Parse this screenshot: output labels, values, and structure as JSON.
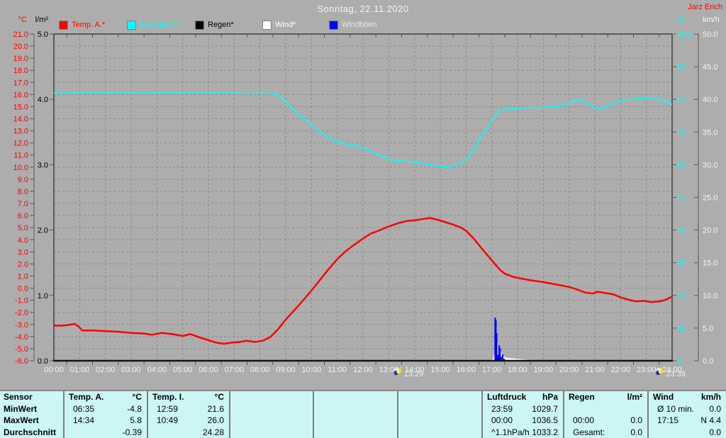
{
  "title": "Sonntag, 22.11.2020",
  "watermark": {
    "text": "Jarz Erich",
    "color": "#ff0000"
  },
  "colors": {
    "background": "#adadad",
    "grid": "#8c8c8c",
    "plot_border": "#5a5a5a",
    "x_axis": "#141414",
    "table_background": "#ccf6f6",
    "table_border": "#7f7f7f",
    "light_text": "#f2f2f2"
  },
  "legend": [
    {
      "label": "Temp. A.*",
      "swatch": "#ff0000",
      "text_color": "#ff0000"
    },
    {
      "label": "Feuchte A.*",
      "swatch": "#00ffff",
      "text_color": "#00ffff"
    },
    {
      "label": "Regen*",
      "swatch": "#000000",
      "text_color": "#000000"
    },
    {
      "label": "Wind*",
      "swatch": "#ffffff",
      "text_color": "#ffffff"
    },
    {
      "label": "Windböen",
      "swatch": "#0000ff",
      "text_color": "#e6e6e6"
    }
  ],
  "chart_data": {
    "type": "line",
    "title": "Sonntag, 22.11.2020",
    "x_axis": {
      "range_hours": [
        0,
        24
      ],
      "labels": [
        "00:00",
        "01:00",
        "02:00",
        "03:00",
        "04:00",
        "05:00",
        "06:00",
        "07:00",
        "08:00",
        "09:00",
        "10:00",
        "11:00",
        "12:00",
        "13:00",
        "14:00",
        "15:00",
        "16:00",
        "17:00",
        "18:00",
        "19:00",
        "20:00",
        "21:00",
        "22:00",
        "23:00",
        "24:00"
      ]
    },
    "axes": {
      "temp": {
        "unit": "°C",
        "color": "#ff0000",
        "min": -6,
        "max": 21,
        "step": 1,
        "tick_labels": [
          "21.0",
          "20.0",
          "19.0",
          "18.0",
          "17.0",
          "16.0",
          "15.0",
          "14.0",
          "13.0",
          "12.0",
          "11.0",
          "10.0",
          "9.0",
          "8.0",
          "7.0",
          "6.0",
          "5.0",
          "4.0",
          "3.0",
          "2.0",
          "1.0",
          "0.0",
          "-1.0",
          "-2.0",
          "-3.0",
          "-4.0",
          "-5.0",
          "-6.0"
        ]
      },
      "rain": {
        "unit": "l/m²",
        "color": "#000000",
        "min": 0,
        "max": 5,
        "step": 1,
        "tick_labels": [
          "5.0",
          "4.0",
          "3.0",
          "2.0",
          "1.0",
          "0.0"
        ]
      },
      "humidity": {
        "unit": "%",
        "color": "#00ffff",
        "min": 0,
        "max": 100,
        "step": 10,
        "tick_labels": [
          "100",
          "90",
          "80",
          "70",
          "60",
          "50",
          "40",
          "30",
          "20",
          "10",
          "0"
        ]
      },
      "wind": {
        "unit": "km/h",
        "color": "#f2f2f2",
        "min": 0,
        "max": 50,
        "step": 5,
        "tick_labels": [
          "50.0",
          "45.0",
          "40.0",
          "35.0",
          "30.0",
          "25.0",
          "20.0",
          "15.0",
          "10.0",
          "5.0",
          "0.0"
        ]
      }
    },
    "series": [
      {
        "name": "Temp. A.",
        "axis": "temp",
        "color": "#ff0000",
        "style": "line",
        "points": [
          [
            0,
            -3.1
          ],
          [
            0.3,
            -3.1
          ],
          [
            0.55,
            -3.05
          ],
          [
            0.8,
            -2.95
          ],
          [
            0.95,
            -3.15
          ],
          [
            1.1,
            -3.5
          ],
          [
            1.5,
            -3.5
          ],
          [
            2,
            -3.55
          ],
          [
            2.5,
            -3.6
          ],
          [
            3,
            -3.7
          ],
          [
            3.5,
            -3.75
          ],
          [
            3.8,
            -3.85
          ],
          [
            4.2,
            -3.7
          ],
          [
            4.6,
            -3.8
          ],
          [
            5,
            -3.95
          ],
          [
            5.3,
            -3.8
          ],
          [
            5.7,
            -4.1
          ],
          [
            6,
            -4.3
          ],
          [
            6.3,
            -4.5
          ],
          [
            6.6,
            -4.6
          ],
          [
            6.9,
            -4.5
          ],
          [
            7.2,
            -4.45
          ],
          [
            7.5,
            -4.35
          ],
          [
            7.8,
            -4.45
          ],
          [
            8.1,
            -4.35
          ],
          [
            8.4,
            -4.05
          ],
          [
            8.7,
            -3.4
          ],
          [
            9,
            -2.6
          ],
          [
            9.3,
            -1.9
          ],
          [
            9.6,
            -1.2
          ],
          [
            10,
            -0.2
          ],
          [
            10.3,
            0.6
          ],
          [
            10.6,
            1.4
          ],
          [
            11,
            2.4
          ],
          [
            11.3,
            3
          ],
          [
            11.6,
            3.5
          ],
          [
            12,
            4.1
          ],
          [
            12.3,
            4.5
          ],
          [
            12.6,
            4.75
          ],
          [
            13,
            5.1
          ],
          [
            13.4,
            5.4
          ],
          [
            13.7,
            5.55
          ],
          [
            14,
            5.6
          ],
          [
            14.3,
            5.7
          ],
          [
            14.6,
            5.8
          ],
          [
            14.9,
            5.65
          ],
          [
            15.2,
            5.45
          ],
          [
            15.5,
            5.25
          ],
          [
            15.8,
            5
          ],
          [
            16,
            4.75
          ],
          [
            16.3,
            4.1
          ],
          [
            16.6,
            3.3
          ],
          [
            17,
            2.3
          ],
          [
            17.3,
            1.55
          ],
          [
            17.5,
            1.2
          ],
          [
            17.8,
            0.95
          ],
          [
            18,
            0.85
          ],
          [
            18.5,
            0.65
          ],
          [
            19,
            0.5
          ],
          [
            19.5,
            0.3
          ],
          [
            20,
            0.1
          ],
          [
            20.3,
            -0.1
          ],
          [
            20.6,
            -0.35
          ],
          [
            20.9,
            -0.45
          ],
          [
            21.1,
            -0.3
          ],
          [
            21.4,
            -0.4
          ],
          [
            21.7,
            -0.5
          ],
          [
            22,
            -0.75
          ],
          [
            22.3,
            -0.95
          ],
          [
            22.6,
            -1.1
          ],
          [
            22.9,
            -1.05
          ],
          [
            23.2,
            -1.15
          ],
          [
            23.5,
            -1.1
          ],
          [
            23.7,
            -1
          ],
          [
            23.85,
            -0.85
          ],
          [
            24,
            -0.7
          ]
        ]
      },
      {
        "name": "Feuchte A.",
        "axis": "humidity",
        "color": "#00ffff",
        "style": "line",
        "points": [
          [
            0,
            81.9
          ],
          [
            1,
            81.9
          ],
          [
            2,
            81.9
          ],
          [
            3,
            81.9
          ],
          [
            4,
            81.9
          ],
          [
            5,
            81.9
          ],
          [
            6,
            81.9
          ],
          [
            7,
            81.9
          ],
          [
            7.8,
            81.8
          ],
          [
            8.3,
            81.9
          ],
          [
            8.7,
            81.5
          ],
          [
            9,
            79.2
          ],
          [
            9.3,
            77
          ],
          [
            9.5,
            75.2
          ],
          [
            9.8,
            73.6
          ],
          [
            10,
            72.3
          ],
          [
            10.3,
            70.4
          ],
          [
            10.5,
            69.1
          ],
          [
            10.8,
            67.6
          ],
          [
            11,
            66.9
          ],
          [
            11.5,
            66.2
          ],
          [
            12,
            65.2
          ],
          [
            12.5,
            63.4
          ],
          [
            12.8,
            62.4
          ],
          [
            13,
            61.6
          ],
          [
            13.5,
            61.2
          ],
          [
            14,
            60.8
          ],
          [
            14.5,
            60.1
          ],
          [
            15,
            59.5
          ],
          [
            15.3,
            59.3
          ],
          [
            15.6,
            59.9
          ],
          [
            16,
            61.6
          ],
          [
            16.3,
            64.4
          ],
          [
            16.5,
            67.6
          ],
          [
            16.8,
            71
          ],
          [
            17,
            73.7
          ],
          [
            17.25,
            76.2
          ],
          [
            17.5,
            77
          ],
          [
            18,
            77.4
          ],
          [
            18.5,
            77.5
          ],
          [
            19,
            77.5
          ],
          [
            19.5,
            77.8
          ],
          [
            20,
            78.8
          ],
          [
            20.25,
            79.9
          ],
          [
            20.5,
            79.6
          ],
          [
            20.75,
            78.4
          ],
          [
            21,
            77.4
          ],
          [
            21.25,
            77.3
          ],
          [
            21.5,
            78
          ],
          [
            22,
            79.6
          ],
          [
            22.5,
            80.1
          ],
          [
            23,
            80.3
          ],
          [
            23.2,
            80.6
          ],
          [
            23.5,
            79.9
          ],
          [
            23.8,
            79.2
          ],
          [
            24,
            78.4
          ]
        ]
      },
      {
        "name": "Regen",
        "axis": "rain",
        "color": "#000000",
        "style": "line",
        "points": [
          [
            0,
            0
          ],
          [
            24,
            0
          ]
        ]
      },
      {
        "name": "Wind",
        "axis": "wind",
        "color": "#ffffff",
        "style": "area",
        "points": [
          [
            16.95,
            0
          ],
          [
            17.05,
            0.2
          ],
          [
            17.12,
            1.2
          ],
          [
            17.17,
            2.3
          ],
          [
            17.22,
            2.6
          ],
          [
            17.27,
            1.9
          ],
          [
            17.32,
            1
          ],
          [
            17.36,
            1.3
          ],
          [
            17.42,
            0.7
          ],
          [
            17.5,
            0.5
          ],
          [
            17.7,
            0.35
          ],
          [
            18,
            0.25
          ],
          [
            18.4,
            0.12
          ],
          [
            18.8,
            0.04
          ],
          [
            19,
            0
          ]
        ]
      },
      {
        "name": "Windböen",
        "axis": "wind",
        "color": "#0000ff",
        "style": "impulse",
        "points": [
          [
            17.13,
            6.6
          ],
          [
            17.16,
            6.2
          ],
          [
            17.19,
            4.2
          ],
          [
            17.24,
            0.9
          ],
          [
            17.28,
            2.4
          ],
          [
            17.32,
            1.9
          ],
          [
            17.36,
            0.6
          ],
          [
            17.42,
            1
          ],
          [
            17.48,
            0.3
          ]
        ]
      }
    ],
    "annotations": [
      {
        "time": "13:29",
        "hour": 13.48
      },
      {
        "time": "23:39",
        "hour": 23.65
      }
    ]
  },
  "table": {
    "row_labels": [
      "Sensor",
      "MinWert",
      "MaxWert",
      "Durchschnitt"
    ],
    "columns": [
      {
        "name": "Temp. A.",
        "unit": "°C",
        "rows": [
          [
            "06:35",
            "-4.8"
          ],
          [
            "14:34",
            "5.8"
          ],
          [
            "",
            "-0.39"
          ]
        ]
      },
      {
        "name": "Temp. I.",
        "unit": "°C",
        "rows": [
          [
            "12:59",
            "21.6"
          ],
          [
            "10:49",
            "26.0"
          ],
          [
            "",
            "24.28"
          ]
        ]
      },
      {
        "name": "",
        "unit": "",
        "rows": [
          [
            "",
            ""
          ],
          [
            "",
            ""
          ],
          [
            "",
            ""
          ]
        ]
      },
      {
        "name": "",
        "unit": "",
        "rows": [
          [
            "",
            ""
          ],
          [
            "",
            ""
          ],
          [
            "",
            ""
          ]
        ]
      },
      {
        "name": "",
        "unit": "",
        "rows": [
          [
            "",
            ""
          ],
          [
            "",
            ""
          ],
          [
            "",
            ""
          ]
        ]
      },
      {
        "name": "Luftdruck",
        "unit": "hPa",
        "rows": [
          [
            "23:59",
            "1029.7"
          ],
          [
            "00:00",
            "1036.5"
          ],
          [
            "^1.1hPa/h",
            "1033.2"
          ]
        ]
      },
      {
        "name": "Regen",
        "unit": "l/m²",
        "rows": [
          [
            "",
            ""
          ],
          [
            "00:00",
            "0.0"
          ],
          [
            "Gesamt:",
            "0.0"
          ]
        ]
      },
      {
        "name": "Wind",
        "unit": "km/h",
        "rows": [
          [
            "Ø 10 min.",
            "0.0"
          ],
          [
            "17:15",
            "N 4.4"
          ],
          [
            "",
            "0.0"
          ]
        ]
      }
    ]
  }
}
